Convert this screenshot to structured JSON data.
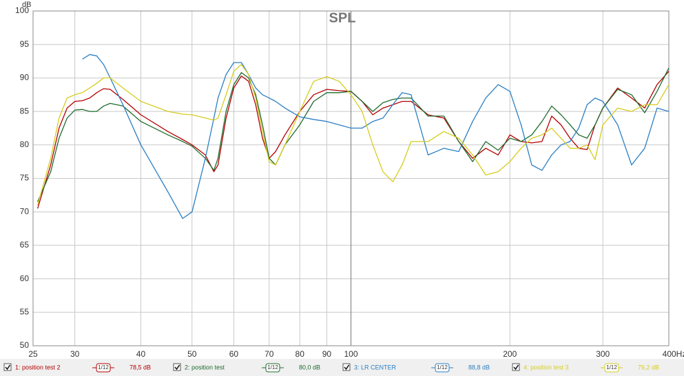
{
  "chart_data": {
    "type": "line",
    "title": "SPL",
    "y_label": "dB",
    "log_x": true,
    "grid": true,
    "x": [
      25.5,
      27,
      28,
      29,
      30,
      31,
      32,
      33,
      34,
      35,
      37,
      40,
      45,
      48,
      50,
      53,
      55,
      56,
      58,
      60,
      62,
      64,
      66,
      68,
      70,
      72,
      75,
      80,
      85,
      90,
      95,
      100,
      105,
      110,
      115,
      120,
      125,
      130,
      140,
      150,
      160,
      170,
      180,
      190,
      200,
      210,
      220,
      230,
      240,
      250,
      260,
      270,
      280,
      290,
      300,
      320,
      340,
      360,
      380,
      400
    ],
    "xlim": [
      25,
      400
    ],
    "xticks": [
      25,
      30,
      40,
      50,
      60,
      70,
      80,
      90,
      100,
      200,
      300,
      {
        "value": 400,
        "label": "400Hz"
      }
    ],
    "ylim": [
      50,
      100
    ],
    "yticks": [
      50,
      55,
      60,
      65,
      70,
      75,
      80,
      85,
      90,
      95,
      100
    ],
    "series": [
      {
        "name": "1: position test 2",
        "color": "#b40000",
        "smoothing": "1/12",
        "level": "78,5 dB",
        "values": [
          70.5,
          77,
          82.5,
          85.5,
          86.5,
          86.6,
          87,
          87.8,
          88.4,
          88.3,
          86.8,
          84.5,
          82,
          80.8,
          80,
          78.5,
          76,
          77,
          84,
          88.5,
          90.3,
          89.5,
          86,
          81,
          78,
          79,
          81.5,
          85,
          87.5,
          88.3,
          88.1,
          88,
          86.5,
          84.5,
          85.5,
          86,
          86.5,
          86.5,
          84.5,
          84,
          80.5,
          78,
          79.5,
          78.5,
          81.5,
          80.5,
          80.3,
          80.5,
          84.3,
          83,
          81,
          79.5,
          79.3,
          83,
          85.5,
          88.5,
          87,
          85.5,
          89,
          91
        ]
      },
      {
        "name": "2: position test",
        "color": "#1e6b2e",
        "smoothing": "1/12",
        "level": "80,0 dB",
        "values": [
          71.5,
          76,
          81,
          84,
          85.2,
          85.3,
          85,
          85,
          85.8,
          86.2,
          85.8,
          83.5,
          81.5,
          80.5,
          79.8,
          78,
          76.2,
          78,
          85,
          89,
          90.8,
          90,
          87.5,
          83,
          78,
          77,
          80,
          83,
          86.5,
          87.8,
          87.8,
          88,
          86.5,
          85,
          86.3,
          86.8,
          87,
          87,
          84.3,
          84.3,
          80.5,
          77.5,
          80.5,
          79.2,
          81,
          80.5,
          81.5,
          83.5,
          85.8,
          84.5,
          83,
          81.5,
          81,
          83,
          85.5,
          88.3,
          87.5,
          84.8,
          88,
          91.5
        ]
      },
      {
        "name": "3: LR CENTER",
        "color": "#2a7fc4",
        "smoothing": "1/12",
        "level": "88,8 dB",
        "values": [
          null,
          null,
          null,
          null,
          null,
          92.8,
          93.5,
          93.3,
          92,
          90,
          86,
          80,
          73,
          69,
          70,
          78,
          84,
          87,
          90.5,
          92.3,
          92.3,
          90.5,
          88.5,
          87.5,
          87,
          86.5,
          85.5,
          84.2,
          83.8,
          83.5,
          83,
          82.5,
          82.5,
          83.5,
          84,
          86,
          87.8,
          87.5,
          78.5,
          79.5,
          79,
          83.5,
          87,
          89,
          88,
          83,
          77,
          76.2,
          78.5,
          80,
          80.5,
          82.5,
          86,
          87,
          86.5,
          83,
          77,
          79.5,
          85.5,
          85
        ]
      },
      {
        "name": "4: position test 3",
        "color": "#d6cc1e",
        "smoothing": "1/12",
        "level": "76,2 dB",
        "values": [
          71,
          78,
          84,
          87,
          87.5,
          87.8,
          88.5,
          89.2,
          90,
          90,
          88.5,
          86.5,
          85,
          84.6,
          84.5,
          84,
          83.7,
          84,
          87.5,
          91,
          92,
          90.5,
          87,
          82,
          77.5,
          77,
          80,
          85,
          89.5,
          90.2,
          89.5,
          87.5,
          85,
          80,
          76,
          74.5,
          77,
          80.5,
          80.5,
          82,
          81,
          78.5,
          75.5,
          76,
          77.5,
          79.5,
          81,
          81.5,
          82.5,
          81,
          79.5,
          79.5,
          80,
          77.8,
          83,
          85.5,
          85,
          86,
          86,
          89
        ]
      }
    ]
  }
}
